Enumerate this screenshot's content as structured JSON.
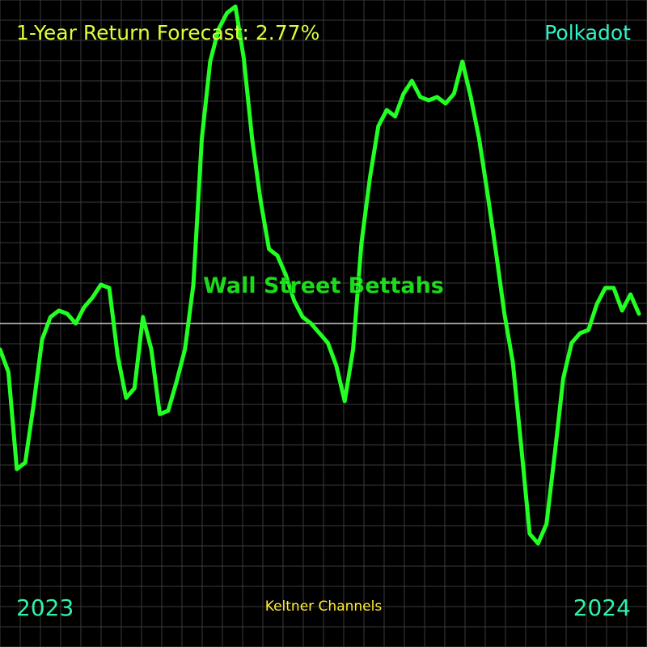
{
  "header": {
    "title": "1-Year Return Forecast: 2.77%",
    "asset": "Polkadot"
  },
  "footer": {
    "start_year": "2023",
    "end_year": "2024",
    "indicator": "Keltner Channels"
  },
  "watermark": "Wall Street Bettahs",
  "colors": {
    "background": "#000000",
    "grid": "#3a3a3a",
    "baseline": "#cccccc",
    "line": "#22ff22",
    "title": "#d9ff3a",
    "asset": "#2ff2c6",
    "years": "#2ff2a8",
    "indicator": "#ffee33"
  },
  "chart_data": {
    "type": "line",
    "x_start": "2023",
    "x_end": "2024",
    "grid": true,
    "ylim": [
      -100,
      100
    ],
    "baseline": 0,
    "y": [
      -8,
      -15,
      -45,
      -43,
      -25,
      -5,
      2,
      4,
      3,
      0,
      5,
      8,
      12,
      11,
      -10,
      -23,
      -20,
      2,
      -8,
      -28,
      -27,
      -18,
      -8,
      12,
      57,
      81,
      91,
      96,
      98,
      82,
      57,
      38,
      23,
      21,
      15,
      7,
      2,
      0,
      -3,
      -6,
      -13,
      -24,
      -8,
      25,
      45,
      61,
      66,
      64,
      71,
      75,
      70,
      69,
      70,
      68,
      71,
      81,
      70,
      57,
      40,
      22,
      3,
      -12,
      -38,
      -65,
      -68,
      -62,
      -40,
      -17,
      -6,
      -3,
      -2,
      6,
      11,
      11,
      4,
      9,
      3
    ]
  }
}
